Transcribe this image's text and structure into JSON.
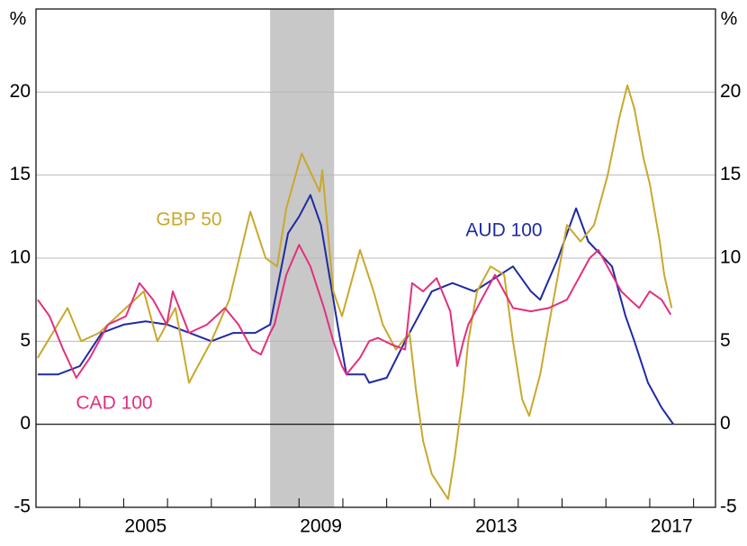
{
  "chart_data": {
    "type": "line",
    "ylabel": "%",
    "y2label": "%",
    "xlim": [
      2003,
      2018.5
    ],
    "xticks": [
      2004,
      2005,
      2006,
      2007,
      2008,
      2009,
      2010,
      2011,
      2012,
      2013,
      2014,
      2015,
      2016,
      2017,
      2018
    ],
    "xticklabels": [
      {
        "value": 2005.5,
        "label": "2005"
      },
      {
        "value": 2009.5,
        "label": "2009"
      },
      {
        "value": 2013.5,
        "label": "2013"
      },
      {
        "value": 2017.5,
        "label": "2017"
      }
    ],
    "ylim": [
      -5,
      25
    ],
    "yticks": [
      -5,
      0,
      5,
      10,
      15,
      20
    ],
    "y2lim": [
      -5,
      25
    ],
    "y2ticks": [
      -5,
      0,
      5,
      10,
      15,
      20
    ],
    "grid": true,
    "shaded_region": [
      2008.34,
      2009.8
    ],
    "series": [
      {
        "name": "AUD 100",
        "color": "#1f2aa3",
        "x": [
          2003.04,
          2003.5,
          2004.0,
          2004.5,
          2005.0,
          2005.5,
          2006.0,
          2006.5,
          2007.0,
          2007.5,
          2008.0,
          2008.34,
          2008.75,
          2009.0,
          2009.26,
          2009.5,
          2009.88,
          2010.08,
          2010.5,
          2010.6,
          2011.0,
          2011.42,
          2012.03,
          2012.5,
          2013.0,
          2013.88,
          2014.29,
          2014.5,
          2014.91,
          2015.32,
          2015.6,
          2016.14,
          2016.45,
          2016.65,
          2016.96,
          2017.27,
          2017.54
        ],
        "values": [
          3,
          3,
          3.5,
          5.5,
          6,
          6.2,
          6,
          5.5,
          5,
          5.5,
          5.5,
          6,
          11.5,
          12.5,
          13.8,
          12,
          6,
          3,
          3,
          2.5,
          2.8,
          5,
          8,
          8.5,
          8,
          9.5,
          8,
          7.5,
          10,
          13,
          11,
          9.5,
          6.5,
          5,
          2.5,
          1,
          0
        ]
      },
      {
        "name": "GBP 50",
        "color": "#c9a82c",
        "x": [
          2003.04,
          2003.72,
          2004.03,
          2004.44,
          2005.46,
          2005.77,
          2006.18,
          2006.49,
          2007.0,
          2007.41,
          2007.89,
          2008.24,
          2008.5,
          2008.71,
          2009.06,
          2009.47,
          2009.53,
          2009.78,
          2009.98,
          2010.29,
          2010.39,
          2010.7,
          2010.91,
          2011.21,
          2011.52,
          2011.67,
          2011.83,
          2012.03,
          2012.4,
          2012.55,
          2012.75,
          2012.86,
          2013.06,
          2013.37,
          2013.68,
          2013.88,
          2014.09,
          2014.25,
          2014.5,
          2014.7,
          2014.91,
          2015.11,
          2015.42,
          2015.73,
          2016.04,
          2016.31,
          2016.49,
          2016.65,
          2016.86,
          2017.0,
          2017.23,
          2017.33,
          2017.5
        ],
        "values": [
          4,
          7,
          5,
          5.5,
          8,
          5,
          7,
          2.5,
          5,
          7.5,
          12.8,
          10,
          9.5,
          13,
          16.3,
          14,
          15.3,
          8,
          6.5,
          9.5,
          10.5,
          8,
          6,
          4.5,
          5.5,
          2,
          -1,
          -3,
          -4.5,
          -2,
          2,
          5,
          8,
          9.5,
          9,
          5,
          1.5,
          0.5,
          3,
          6,
          9,
          12,
          11,
          12,
          15,
          18.5,
          20.4,
          19,
          16,
          14.5,
          11,
          9,
          7
        ]
      },
      {
        "name": "CAD 100",
        "color": "#e2307e",
        "x": [
          2003.04,
          2003.31,
          2003.62,
          2003.92,
          2004.23,
          2004.64,
          2005.05,
          2005.36,
          2005.67,
          2005.98,
          2006.12,
          2006.49,
          2006.9,
          2007.31,
          2007.62,
          2007.93,
          2008.13,
          2008.34,
          2008.44,
          2008.71,
          2009.0,
          2009.26,
          2009.57,
          2009.78,
          2009.98,
          2010.08,
          2010.39,
          2010.6,
          2010.8,
          2011.11,
          2011.42,
          2011.58,
          2011.83,
          2012.14,
          2012.45,
          2012.61,
          2012.75,
          2012.86,
          2013.16,
          2013.47,
          2013.88,
          2014.29,
          2014.7,
          2015.11,
          2015.32,
          2015.63,
          2015.83,
          2016.14,
          2016.35,
          2016.55,
          2016.76,
          2017.0,
          2017.27,
          2017.48
        ],
        "values": [
          7.5,
          6.5,
          4.5,
          2.8,
          4,
          6,
          6.5,
          8.5,
          7.5,
          6,
          8,
          5.5,
          6,
          7,
          6,
          4.5,
          4.2,
          5.5,
          6,
          9,
          10.8,
          9.5,
          7,
          5,
          3.5,
          3,
          4,
          5,
          5.2,
          4.8,
          4.5,
          8.5,
          8,
          8.8,
          6.8,
          3.5,
          5,
          6,
          7.5,
          9,
          7,
          6.8,
          7,
          7.5,
          8.5,
          10,
          10.5,
          9,
          8,
          7.5,
          7,
          8,
          7.5,
          6.6
        ]
      }
    ]
  }
}
